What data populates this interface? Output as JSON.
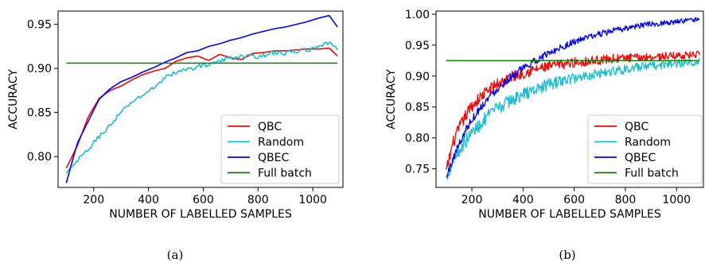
{
  "chart_data": [
    {
      "type": "line",
      "caption": "(a)",
      "xlabel": "NUMBER OF LABELLED SAMPLES",
      "ylabel": "ACCURACY",
      "xlim": [
        70,
        1110
      ],
      "ylim": [
        0.765,
        0.965
      ],
      "xticks": [
        200,
        400,
        600,
        800,
        1000
      ],
      "yticks": [
        0.8,
        0.85,
        0.9,
        0.95
      ],
      "ytick_labels": [
        "0.80",
        "0.85",
        "0.90",
        "0.95"
      ],
      "grid": false,
      "legend": "lower-right",
      "series": [
        {
          "name": "QBC",
          "color": "#ff0000",
          "x": [
            100,
            140,
            180,
            220,
            260,
            300,
            340,
            380,
            420,
            460,
            500,
            540,
            580,
            620,
            660,
            700,
            740,
            780,
            820,
            860,
            900,
            940,
            980,
            1020,
            1060,
            1090
          ],
          "y": [
            0.787,
            0.812,
            0.845,
            0.866,
            0.875,
            0.88,
            0.887,
            0.893,
            0.897,
            0.9,
            0.908,
            0.912,
            0.914,
            0.909,
            0.916,
            0.912,
            0.91,
            0.917,
            0.918,
            0.92,
            0.92,
            0.921,
            0.922,
            0.922,
            0.923,
            0.914
          ]
        },
        {
          "name": "Random",
          "color": "#17becf",
          "x": [
            100,
            140,
            180,
            220,
            260,
            300,
            340,
            380,
            420,
            460,
            500,
            540,
            580,
            620,
            660,
            700,
            740,
            780,
            820,
            860,
            900,
            940,
            980,
            1020,
            1060,
            1090
          ],
          "y": [
            0.78,
            0.795,
            0.808,
            0.823,
            0.835,
            0.85,
            0.862,
            0.87,
            0.878,
            0.89,
            0.895,
            0.899,
            0.902,
            0.905,
            0.908,
            0.912,
            0.914,
            0.913,
            0.915,
            0.918,
            0.917,
            0.92,
            0.921,
            0.923,
            0.93,
            0.921
          ]
        },
        {
          "name": "QBEC",
          "color": "#0000ff",
          "x": [
            100,
            140,
            180,
            220,
            260,
            300,
            340,
            380,
            420,
            460,
            500,
            540,
            580,
            620,
            660,
            700,
            740,
            780,
            820,
            860,
            900,
            940,
            980,
            1020,
            1060,
            1090
          ],
          "y": [
            0.77,
            0.815,
            0.84,
            0.865,
            0.877,
            0.885,
            0.89,
            0.896,
            0.901,
            0.907,
            0.912,
            0.918,
            0.92,
            0.925,
            0.928,
            0.932,
            0.935,
            0.939,
            0.942,
            0.945,
            0.947,
            0.95,
            0.953,
            0.957,
            0.96,
            0.947
          ]
        },
        {
          "name": "Full batch",
          "color": "#008000",
          "x": [
            100,
            1090
          ],
          "y": [
            0.906,
            0.906
          ]
        }
      ]
    },
    {
      "type": "line",
      "caption": "(b)",
      "xlabel": "NUMBER OF LABELLED SAMPLES",
      "ylabel": "ACCURACY",
      "xlim": [
        60,
        1105
      ],
      "ylim": [
        0.72,
        1.005
      ],
      "xticks": [
        200,
        400,
        600,
        800,
        1000
      ],
      "yticks": [
        0.75,
        0.8,
        0.85,
        0.9,
        0.95,
        1.0
      ],
      "ytick_labels": [
        "0.75",
        "0.80",
        "0.85",
        "0.90",
        "0.95",
        "1.00"
      ],
      "grid": false,
      "legend": "lower-right",
      "series": [
        {
          "name": "QBC",
          "color": "#ff0000",
          "x": [
            100,
            125,
            150,
            175,
            200,
            250,
            300,
            350,
            400,
            450,
            500,
            550,
            600,
            650,
            700,
            750,
            800,
            850,
            900,
            950,
            1000,
            1050,
            1090
          ],
          "y": [
            0.745,
            0.79,
            0.815,
            0.835,
            0.852,
            0.872,
            0.888,
            0.898,
            0.905,
            0.911,
            0.915,
            0.919,
            0.922,
            0.924,
            0.926,
            0.928,
            0.929,
            0.93,
            0.931,
            0.932,
            0.933,
            0.934,
            0.935
          ]
        },
        {
          "name": "Random",
          "color": "#17becf",
          "x": [
            100,
            125,
            150,
            175,
            200,
            250,
            300,
            350,
            400,
            450,
            500,
            550,
            600,
            650,
            700,
            750,
            800,
            850,
            900,
            950,
            1000,
            1050,
            1090
          ],
          "y": [
            0.735,
            0.765,
            0.78,
            0.795,
            0.808,
            0.83,
            0.848,
            0.86,
            0.87,
            0.879,
            0.886,
            0.892,
            0.897,
            0.901,
            0.905,
            0.908,
            0.911,
            0.914,
            0.916,
            0.918,
            0.92,
            0.922,
            0.924
          ]
        },
        {
          "name": "QBEC",
          "color": "#0000ff",
          "x": [
            100,
            125,
            150,
            175,
            200,
            250,
            300,
            350,
            400,
            450,
            500,
            550,
            600,
            650,
            700,
            750,
            800,
            850,
            900,
            950,
            1000,
            1050,
            1090
          ],
          "y": [
            0.735,
            0.765,
            0.79,
            0.812,
            0.83,
            0.858,
            0.88,
            0.898,
            0.912,
            0.925,
            0.937,
            0.947,
            0.955,
            0.962,
            0.968,
            0.973,
            0.977,
            0.981,
            0.984,
            0.986,
            0.988,
            0.99,
            0.991
          ]
        },
        {
          "name": "Full batch",
          "color": "#008000",
          "x": [
            100,
            1090
          ],
          "y": [
            0.925,
            0.925
          ]
        }
      ]
    }
  ]
}
